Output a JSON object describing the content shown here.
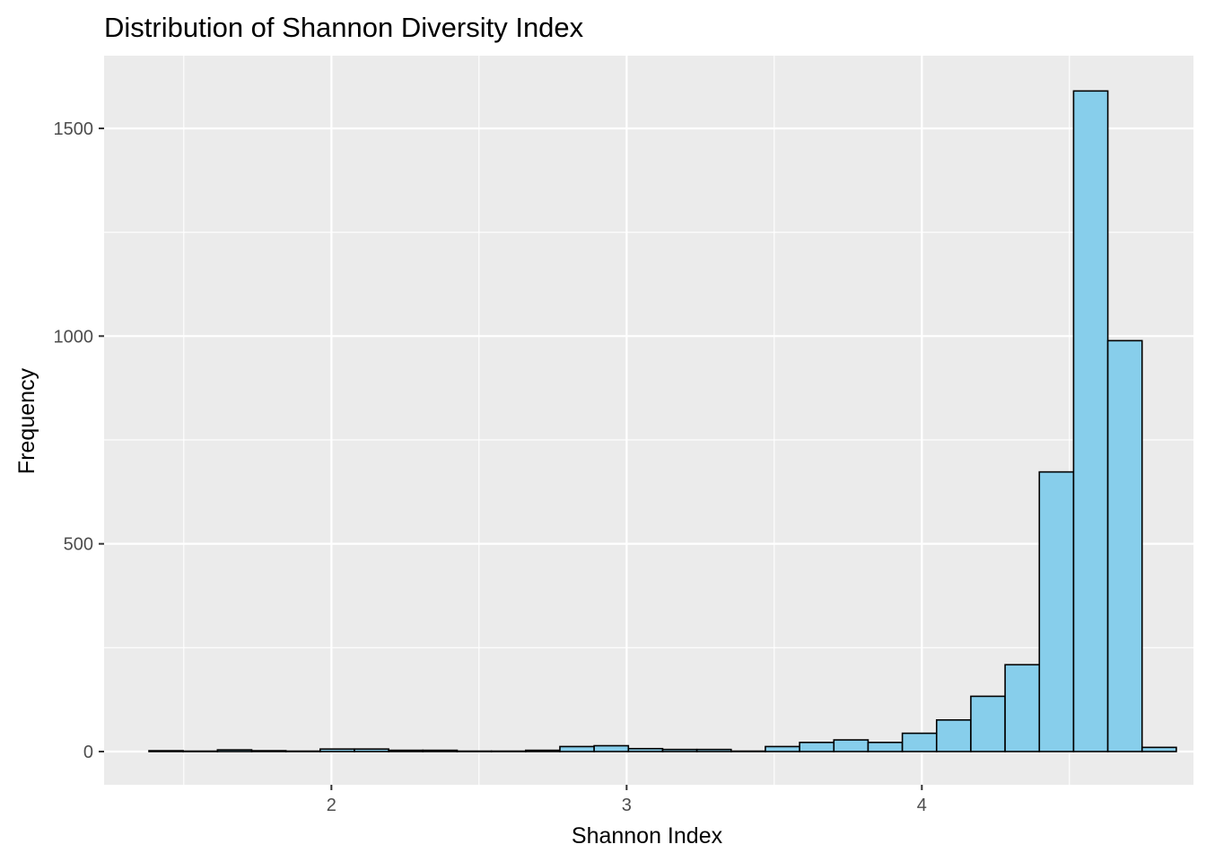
{
  "chart_data": {
    "type": "bar",
    "title": "Distribution of Shannon Diversity Index",
    "xlabel": "Shannon Index",
    "ylabel": "Frequency",
    "xlim": [
      1.23,
      4.92
    ],
    "ylim": [
      -80,
      1675
    ],
    "x_ticks": [
      2,
      3,
      4
    ],
    "x_tick_labels": [
      "2",
      "3",
      "4"
    ],
    "y_ticks": [
      0,
      500,
      1000,
      1500
    ],
    "y_tick_labels": [
      "0",
      "500",
      "1000",
      "1500"
    ],
    "bin_width": 0.116,
    "bin_centers": [
      1.44,
      1.556,
      1.672,
      1.788,
      1.904,
      2.02,
      2.136,
      2.252,
      2.368,
      2.484,
      2.6,
      2.716,
      2.832,
      2.948,
      3.064,
      3.18,
      3.296,
      3.412,
      3.528,
      3.644,
      3.76,
      3.876,
      3.992,
      4.108,
      4.224,
      4.34,
      4.456,
      4.572,
      4.688,
      4.804
    ],
    "values": [
      2,
      1,
      4,
      2,
      1,
      6,
      6,
      3,
      3,
      1,
      1,
      3,
      12,
      14,
      7,
      5,
      5,
      1,
      12,
      22,
      28,
      22,
      44,
      76,
      133,
      209,
      673,
      1590,
      989,
      10
    ],
    "bar_fill": "#87ceeb",
    "bar_stroke": "#000000",
    "panel_background": "#ebebeb",
    "grid": true,
    "grid_color": "#ffffff",
    "legend": "none"
  }
}
